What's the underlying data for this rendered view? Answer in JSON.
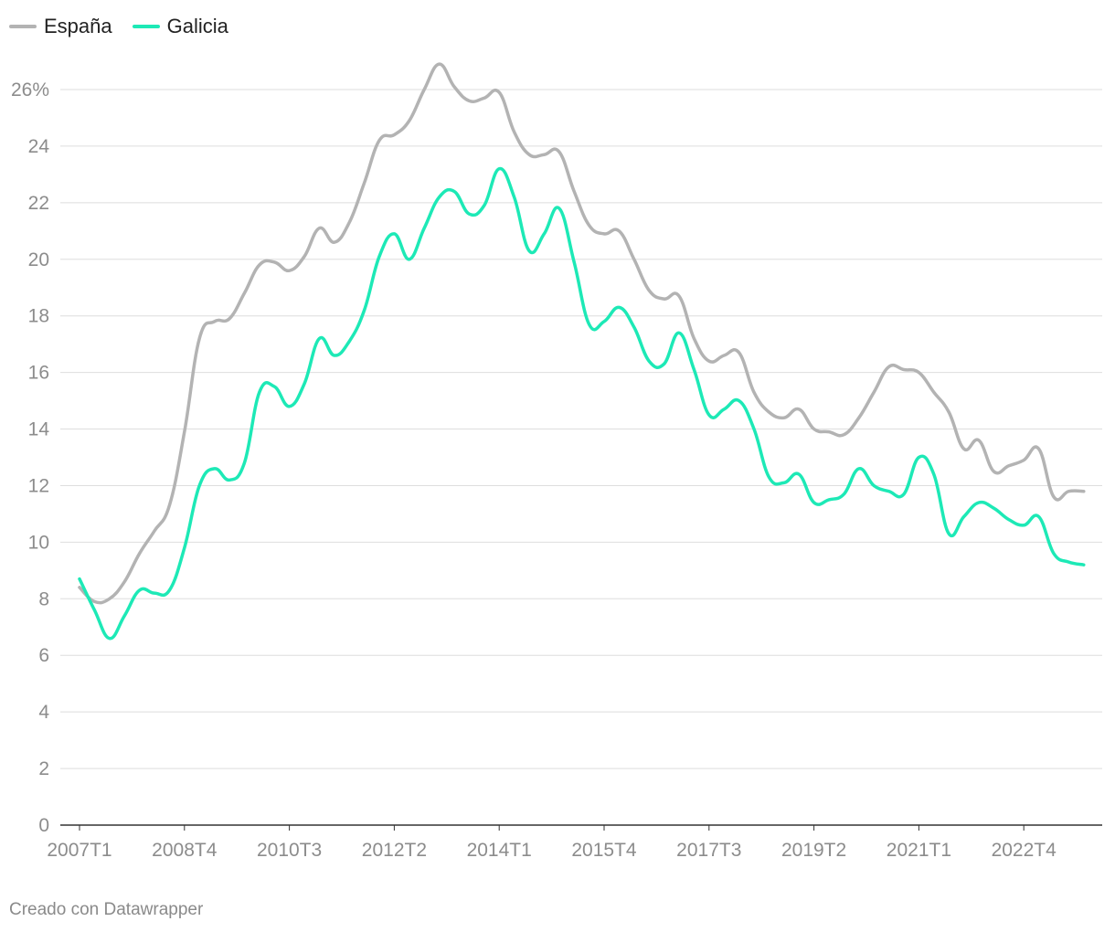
{
  "colors": {
    "espana": "#b3b3b3",
    "galicia": "#1de9b6",
    "grid": "#dedede",
    "axis": "#333333",
    "text": "#8c8c8c"
  },
  "footer": {
    "text": "Creado con Datawrapper"
  },
  "chart_data": {
    "type": "line",
    "title": "",
    "xlabel": "",
    "ylabel": "",
    "ylim": [
      0,
      26
    ],
    "y_ticks": [
      0,
      2,
      4,
      6,
      8,
      10,
      12,
      14,
      16,
      18,
      20,
      22,
      24,
      26
    ],
    "y_tick_labels": [
      "0",
      "2",
      "4",
      "6",
      "8",
      "10",
      "12",
      "14",
      "16",
      "18",
      "20",
      "22",
      "24",
      "26%"
    ],
    "x_tick_labels": [
      "2007T1",
      "2008T4",
      "2010T3",
      "2012T2",
      "2014T1",
      "2015T4",
      "2017T3",
      "2019T2",
      "2021T1",
      "2022T4"
    ],
    "x_tick_indices": [
      0,
      7,
      14,
      21,
      28,
      35,
      42,
      49,
      56,
      63
    ],
    "legend_position": "top-left",
    "grid": true,
    "x": [
      "2007T1",
      "2007T2",
      "2007T3",
      "2007T4",
      "2008T1",
      "2008T2",
      "2008T3",
      "2008T4",
      "2009T1",
      "2009T2",
      "2009T3",
      "2009T4",
      "2010T1",
      "2010T2",
      "2010T3",
      "2010T4",
      "2011T1",
      "2011T2",
      "2011T3",
      "2011T4",
      "2012T1",
      "2012T2",
      "2012T3",
      "2012T4",
      "2013T1",
      "2013T2",
      "2013T3",
      "2013T4",
      "2014T1",
      "2014T2",
      "2014T3",
      "2014T4",
      "2015T1",
      "2015T2",
      "2015T3",
      "2015T4",
      "2016T1",
      "2016T2",
      "2016T3",
      "2016T4",
      "2017T1",
      "2017T2",
      "2017T3",
      "2017T4",
      "2018T1",
      "2018T2",
      "2018T3",
      "2018T4",
      "2019T1",
      "2019T2",
      "2019T3",
      "2019T4",
      "2020T1",
      "2020T2",
      "2020T3",
      "2020T4",
      "2021T1",
      "2021T2",
      "2021T3",
      "2021T4",
      "2022T1",
      "2022T2",
      "2022T3",
      "2022T4",
      "2023T1",
      "2023T2",
      "2023T3",
      "2023T4"
    ],
    "series": [
      {
        "name": "España",
        "color": "#b3b3b3",
        "values": [
          8.4,
          7.9,
          8.0,
          8.6,
          9.6,
          10.4,
          11.3,
          13.9,
          17.2,
          17.8,
          17.9,
          18.8,
          19.8,
          19.9,
          19.6,
          20.1,
          21.1,
          20.6,
          21.3,
          22.7,
          24.2,
          24.4,
          24.9,
          26.0,
          26.9,
          26.1,
          25.6,
          25.7,
          25.9,
          24.5,
          23.7,
          23.7,
          23.8,
          22.4,
          21.2,
          20.9,
          21.0,
          20.0,
          18.9,
          18.6,
          18.7,
          17.2,
          16.4,
          16.6,
          16.7,
          15.3,
          14.6,
          14.4,
          14.7,
          14.0,
          13.9,
          13.8,
          14.4,
          15.3,
          16.2,
          16.1,
          16.0,
          15.3,
          14.6,
          13.3,
          13.6,
          12.5,
          12.7,
          12.9,
          13.3,
          11.6,
          11.8,
          11.8
        ]
      },
      {
        "name": "Galicia",
        "color": "#1de9b6",
        "values": [
          8.7,
          7.6,
          6.6,
          7.4,
          8.3,
          8.2,
          8.3,
          9.8,
          12.0,
          12.6,
          12.2,
          12.8,
          15.3,
          15.5,
          14.8,
          15.6,
          17.2,
          16.6,
          17.1,
          18.2,
          20.1,
          20.9,
          20.0,
          21.1,
          22.2,
          22.4,
          21.6,
          21.9,
          23.2,
          22.2,
          20.3,
          20.9,
          21.8,
          19.9,
          17.7,
          17.8,
          18.3,
          17.6,
          16.4,
          16.3,
          17.4,
          16.1,
          14.5,
          14.7,
          15.0,
          14.0,
          12.3,
          12.1,
          12.4,
          11.4,
          11.5,
          11.7,
          12.6,
          12.0,
          11.8,
          11.7,
          13.0,
          12.4,
          10.3,
          10.9,
          11.4,
          11.2,
          10.8,
          10.6,
          10.9,
          9.6,
          9.3,
          9.2
        ]
      }
    ]
  }
}
